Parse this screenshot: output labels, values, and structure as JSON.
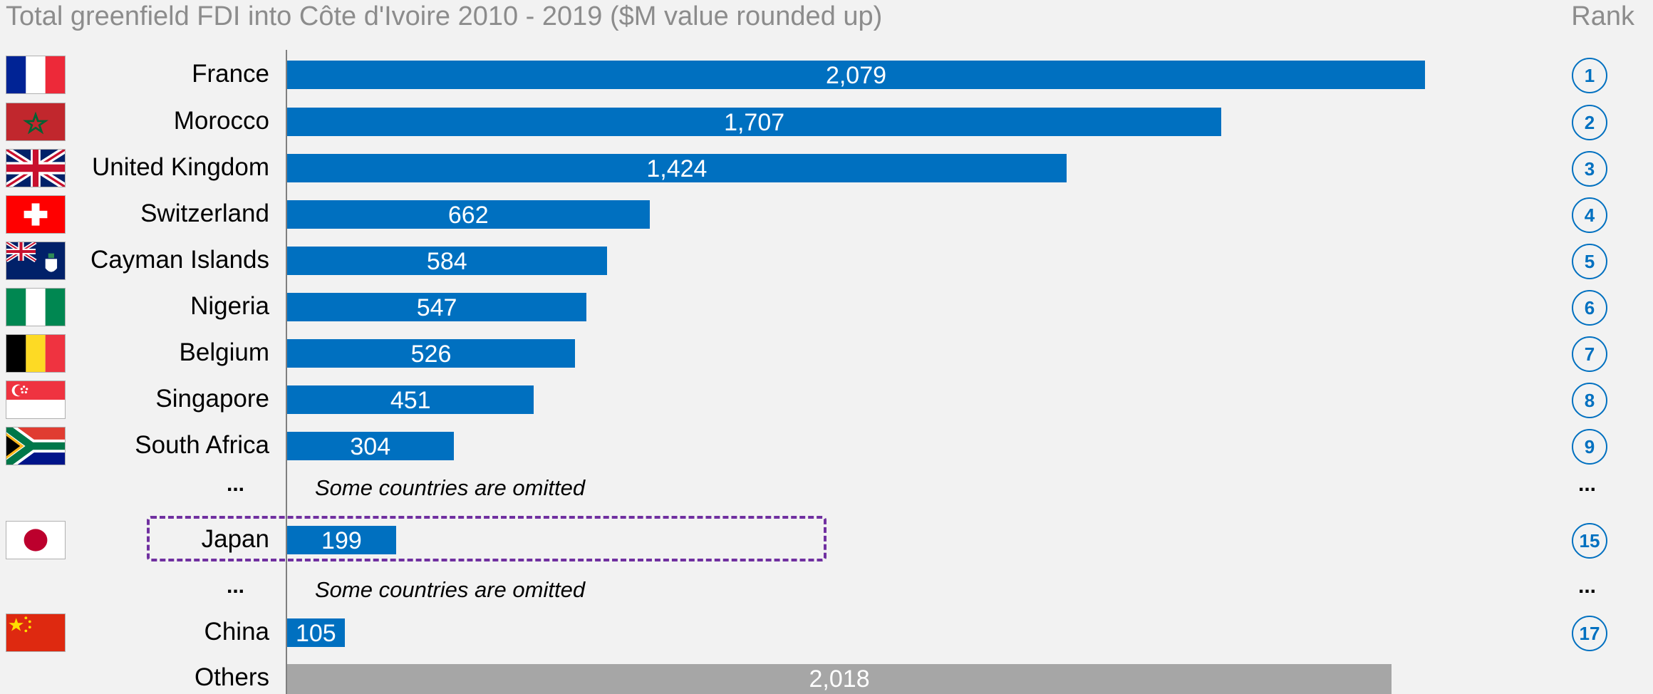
{
  "title": "Total greenfield FDI into Côte d'Ivoire 2010 - 2019 ($M value rounded up)",
  "rank_header": "Rank",
  "ellipsis": "...",
  "omitted_note": "Some countries are omitted",
  "colors": {
    "bar": "#0070c0",
    "other_bar": "#a6a6a6",
    "highlight": "#7030a0",
    "rank": "#0070c0"
  },
  "chart_data": {
    "type": "bar",
    "orientation": "horizontal",
    "title": "Total greenfield FDI into Côte d'Ivoire 2010 - 2019 ($M value rounded up)",
    "categories": [
      "France",
      "Morocco",
      "United Kingdom",
      "Switzerland",
      "Cayman Islands",
      "Nigeria",
      "Belgium",
      "Singapore",
      "South Africa",
      "Japan",
      "China",
      "Others"
    ],
    "values": [
      2079,
      1707,
      1424,
      662,
      584,
      547,
      526,
      451,
      304,
      199,
      105,
      2018
    ],
    "value_labels": [
      "2,079",
      "1,707",
      "1,424",
      "662",
      "584",
      "547",
      "526",
      "451",
      "304",
      "199",
      "105",
      "2,018"
    ],
    "ranks": [
      "1",
      "2",
      "3",
      "4",
      "5",
      "6",
      "7",
      "8",
      "9",
      "15",
      "17",
      ""
    ],
    "flags": [
      "france-flag-icon",
      "morocco-flag-icon",
      "uk-flag-icon",
      "switzerland-flag-icon",
      "cayman-islands-flag-icon",
      "nigeria-flag-icon",
      "belgium-flag-icon",
      "singapore-flag-icon",
      "south-africa-flag-icon",
      "japan-flag-icon",
      "china-flag-icon",
      ""
    ],
    "highlighted": "Japan",
    "xlim": [
      0,
      2079
    ],
    "grid": false,
    "legend": "none"
  }
}
